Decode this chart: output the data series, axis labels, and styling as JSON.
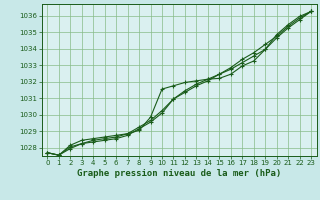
{
  "xlabel": "Graphe pression niveau de la mer (hPa)",
  "x_ticks": [
    0,
    1,
    2,
    3,
    4,
    5,
    6,
    7,
    8,
    9,
    10,
    11,
    12,
    13,
    14,
    15,
    16,
    17,
    18,
    19,
    20,
    21,
    22,
    23
  ],
  "y_ticks": [
    1028,
    1029,
    1030,
    1031,
    1032,
    1033,
    1034,
    1035,
    1036
  ],
  "ylim": [
    1027.5,
    1036.7
  ],
  "xlim": [
    -0.5,
    23.5
  ],
  "bg_color": "#c8e8e8",
  "plot_bg_color": "#daf0f0",
  "grid_color": "#88bb88",
  "line_color": "#1a5c1a",
  "line1_y": [
    1027.7,
    1027.55,
    1028.15,
    1028.45,
    1028.55,
    1028.65,
    1028.75,
    1028.85,
    1029.05,
    1029.85,
    1031.55,
    1031.75,
    1031.95,
    1032.05,
    1032.15,
    1032.2,
    1032.45,
    1032.95,
    1033.25,
    1033.95,
    1034.85,
    1035.45,
    1035.95,
    1036.25
  ],
  "line2_y": [
    1027.7,
    1027.55,
    1028.05,
    1028.25,
    1028.45,
    1028.55,
    1028.65,
    1028.85,
    1029.25,
    1029.65,
    1030.25,
    1030.95,
    1031.35,
    1031.75,
    1032.05,
    1032.45,
    1032.75,
    1033.15,
    1033.55,
    1033.95,
    1034.65,
    1035.25,
    1035.75,
    1036.25
  ],
  "line3_y": [
    1027.7,
    1027.55,
    1027.95,
    1028.25,
    1028.35,
    1028.45,
    1028.55,
    1028.75,
    1029.15,
    1029.55,
    1030.1,
    1030.95,
    1031.45,
    1031.85,
    1032.15,
    1032.45,
    1032.85,
    1033.35,
    1033.75,
    1034.25,
    1034.75,
    1035.35,
    1035.85,
    1036.25
  ]
}
